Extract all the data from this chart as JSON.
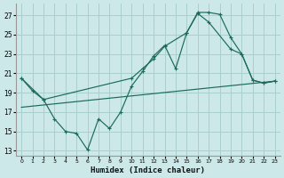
{
  "xlabel": "Humidex (Indice chaleur)",
  "bg_color": "#cce8e8",
  "grid_color": "#aacece",
  "line_color": "#1a6b5a",
  "xlim": [
    -0.5,
    23.5
  ],
  "ylim": [
    12.5,
    28.2
  ],
  "xticks": [
    0,
    1,
    2,
    3,
    4,
    5,
    6,
    7,
    8,
    9,
    10,
    11,
    12,
    13,
    14,
    15,
    16,
    17,
    18,
    19,
    20,
    21,
    22,
    23
  ],
  "yticks": [
    13,
    15,
    17,
    19,
    21,
    23,
    25,
    27
  ],
  "curve1_x": [
    0,
    1,
    2,
    3,
    4,
    5,
    6,
    7,
    8,
    9,
    10,
    11,
    12,
    13,
    14,
    15,
    16,
    17,
    18,
    19,
    20,
    21,
    22,
    23
  ],
  "curve1_y": [
    20.5,
    19.2,
    18.3,
    16.3,
    15.0,
    14.8,
    13.1,
    16.3,
    15.3,
    17.0,
    19.7,
    21.2,
    22.8,
    23.9,
    21.5,
    25.2,
    27.3,
    27.3,
    27.1,
    24.7,
    23.0,
    20.3,
    20.0,
    20.2
  ],
  "curve2_x": [
    0,
    2,
    10,
    11,
    12,
    13,
    15,
    16,
    17,
    19,
    20,
    21,
    22,
    23
  ],
  "curve2_y": [
    20.5,
    18.3,
    20.5,
    21.5,
    22.5,
    23.8,
    25.2,
    27.2,
    26.3,
    23.5,
    23.0,
    20.3,
    20.0,
    20.2
  ],
  "line3_x": [
    0,
    23
  ],
  "line3_y": [
    17.5,
    20.2
  ]
}
